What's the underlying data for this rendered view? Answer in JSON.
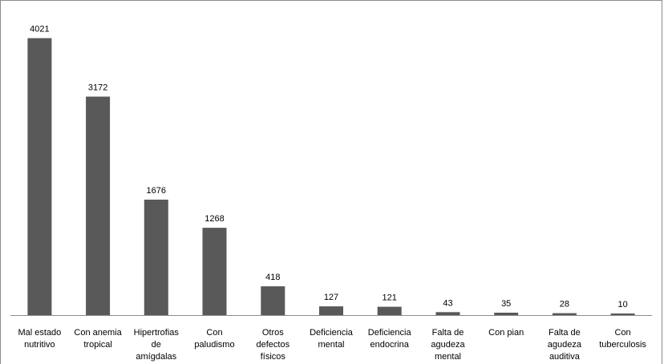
{
  "chart_data": {
    "type": "bar",
    "title": "",
    "xlabel": "",
    "ylabel": "",
    "grid": false,
    "legend": "none",
    "categories": [
      [
        "Mal estado",
        "nutritivo"
      ],
      [
        "Con anemia",
        "tropical"
      ],
      [
        "Hipertrofias",
        "de",
        "amígdalas"
      ],
      [
        "Con",
        "paludismo"
      ],
      [
        "Otros",
        "defectos",
        "físicos"
      ],
      [
        "Deficiencia",
        "mental"
      ],
      [
        "Deficiencia",
        "endocrina"
      ],
      [
        "Falta de",
        "agudeza",
        "mental"
      ],
      [
        "Con pian"
      ],
      [
        "Falta de",
        "agudeza",
        "auditiva"
      ],
      [
        "Con",
        "tuberculosis"
      ]
    ],
    "values": [
      4021,
      3172,
      1676,
      1268,
      418,
      127,
      121,
      43,
      35,
      28,
      10
    ],
    "ylim": [
      0,
      4400
    ],
    "bar_color": "#595959"
  }
}
